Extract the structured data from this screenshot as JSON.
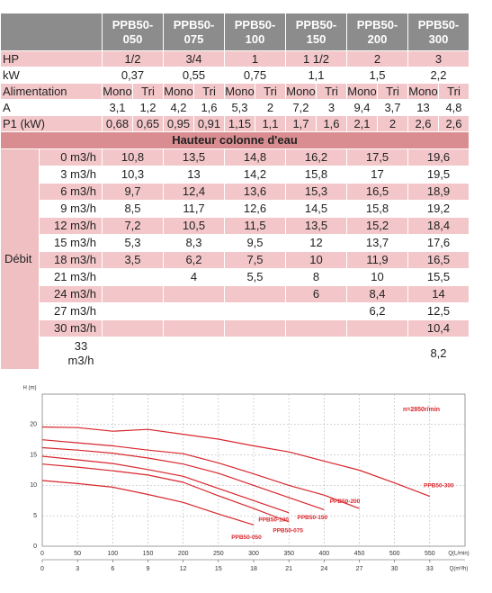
{
  "table": {
    "models": [
      "PPB50-050",
      "PPB50-075",
      "PPB50-100",
      "PPB50-150",
      "PPB50-200",
      "PPB50-300"
    ],
    "specs": [
      {
        "label": "HP",
        "cells": [
          "1/2",
          "3/4",
          "1",
          "1 1/2",
          "2",
          "3"
        ]
      },
      {
        "label": "kW",
        "cells": [
          "0,37",
          "0,55",
          "0,75",
          "1,1",
          "1,5",
          "2,2"
        ]
      },
      {
        "label": "Alimentation",
        "cells": [
          [
            "Mono",
            "Tri"
          ],
          [
            "Mono",
            "Tri"
          ],
          [
            "Mono",
            "Tri"
          ],
          [
            "Mono",
            "Tri"
          ],
          [
            "Mono",
            "Tri"
          ],
          [
            "Mono",
            "Tri"
          ]
        ]
      },
      {
        "label": "A",
        "cells": [
          [
            "3,1",
            "1,2"
          ],
          [
            "4,2",
            "1,6"
          ],
          [
            "5,3",
            "2"
          ],
          [
            "7,2",
            "3"
          ],
          [
            "9,4",
            "3,7"
          ],
          [
            "13",
            "4,8"
          ]
        ]
      },
      {
        "label": "P1 (kW)",
        "cells": [
          [
            "0,68",
            "0,65"
          ],
          [
            "0,95",
            "0,91"
          ],
          [
            "1,15",
            "1,1"
          ],
          [
            "1,7",
            "1,6"
          ],
          [
            "2,1",
            "2"
          ],
          [
            "2,6",
            "2,6"
          ]
        ]
      }
    ],
    "section": "Hauteur colonne d'eau",
    "flow_label": "Débit",
    "flow_rows": [
      {
        "label": "0 m3/h",
        "cells": [
          "10,8",
          "13,5",
          "14,8",
          "16,2",
          "17,5",
          "19,6"
        ]
      },
      {
        "label": "3 m3/h",
        "cells": [
          "10,3",
          "13",
          "14,2",
          "15,8",
          "17",
          "19,5"
        ]
      },
      {
        "label": "6 m3/h",
        "cells": [
          "9,7",
          "12,4",
          "13,6",
          "15,3",
          "16,5",
          "18,9"
        ]
      },
      {
        "label": "9 m3/h",
        "cells": [
          "8,5",
          "11,7",
          "12,6",
          "14,5",
          "15,8",
          "19,2"
        ]
      },
      {
        "label": "12 m3/h",
        "cells": [
          "7,2",
          "10,5",
          "11,5",
          "13,5",
          "15,2",
          "18,4"
        ]
      },
      {
        "label": "15 m3/h",
        "cells": [
          "5,3",
          "8,3",
          "9,5",
          "12",
          "13,7",
          "17,6"
        ]
      },
      {
        "label": "18 m3/h",
        "cells": [
          "3,5",
          "6,2",
          "7,5",
          "10",
          "11,9",
          "16,5"
        ]
      },
      {
        "label": "21 m3/h",
        "cells": [
          null,
          "4",
          "5,5",
          "8",
          "10",
          "15,5"
        ]
      },
      {
        "label": "24 m3/h",
        "cells": [
          null,
          null,
          null,
          "6",
          "8,4",
          "14"
        ]
      },
      {
        "label": "27 m3/h",
        "cells": [
          null,
          null,
          null,
          null,
          "6,2",
          "12,5"
        ]
      },
      {
        "label": "30 m3/h",
        "cells": [
          null,
          null,
          null,
          null,
          null,
          "10,4"
        ]
      },
      {
        "label": "33 m3/h",
        "cells": [
          null,
          null,
          null,
          null,
          null,
          "8,2"
        ]
      }
    ]
  },
  "chart_data": {
    "type": "line",
    "y_label": "H (m)",
    "x_label": "Q(L/min)",
    "x2_label": "Q(m³/h)",
    "annotation": "n=2850r/min",
    "x": [
      0,
      50,
      100,
      150,
      200,
      250,
      300,
      350,
      400,
      450,
      500,
      550
    ],
    "xlim": [
      0,
      600
    ],
    "xticks": [
      0,
      50,
      100,
      150,
      200,
      250,
      300,
      350,
      400,
      450,
      500,
      550
    ],
    "x2lim": [
      0,
      36
    ],
    "x2ticks": [
      0,
      3,
      6,
      9,
      12,
      15,
      18,
      21,
      24,
      27,
      30,
      33
    ],
    "ylim": [
      0,
      25
    ],
    "yticks": [
      0,
      5,
      10,
      15,
      20
    ],
    "grid": true,
    "series": [
      {
        "name": "PPB50-050",
        "color": "#d7262b",
        "values": [
          10.8,
          10.3,
          9.7,
          8.5,
          7.2,
          5.3,
          3.5,
          null,
          null,
          null,
          null,
          null
        ]
      },
      {
        "name": "PPB50-075",
        "color": "#d7262b",
        "values": [
          13.5,
          13,
          12.4,
          11.7,
          10.5,
          8.3,
          6.2,
          4,
          null,
          null,
          null,
          null
        ]
      },
      {
        "name": "PPB50-100",
        "color": "#d7262b",
        "values": [
          14.8,
          14.2,
          13.6,
          12.6,
          11.5,
          9.5,
          7.5,
          5.5,
          null,
          null,
          null,
          null
        ]
      },
      {
        "name": "PPB50-150",
        "color": "#d7262b",
        "values": [
          16.2,
          15.8,
          15.3,
          14.5,
          13.5,
          12,
          10,
          8,
          6,
          null,
          null,
          null
        ]
      },
      {
        "name": "PPB50-200",
        "color": "#d7262b",
        "values": [
          17.5,
          17,
          16.5,
          15.8,
          15.2,
          13.7,
          11.9,
          10,
          8.4,
          6.2,
          null,
          null
        ]
      },
      {
        "name": "PPB50-300",
        "color": "#d7262b",
        "values": [
          19.6,
          19.5,
          18.9,
          19.2,
          18.4,
          17.6,
          16.5,
          15.5,
          14,
          12.5,
          10.4,
          8.2
        ]
      }
    ]
  }
}
